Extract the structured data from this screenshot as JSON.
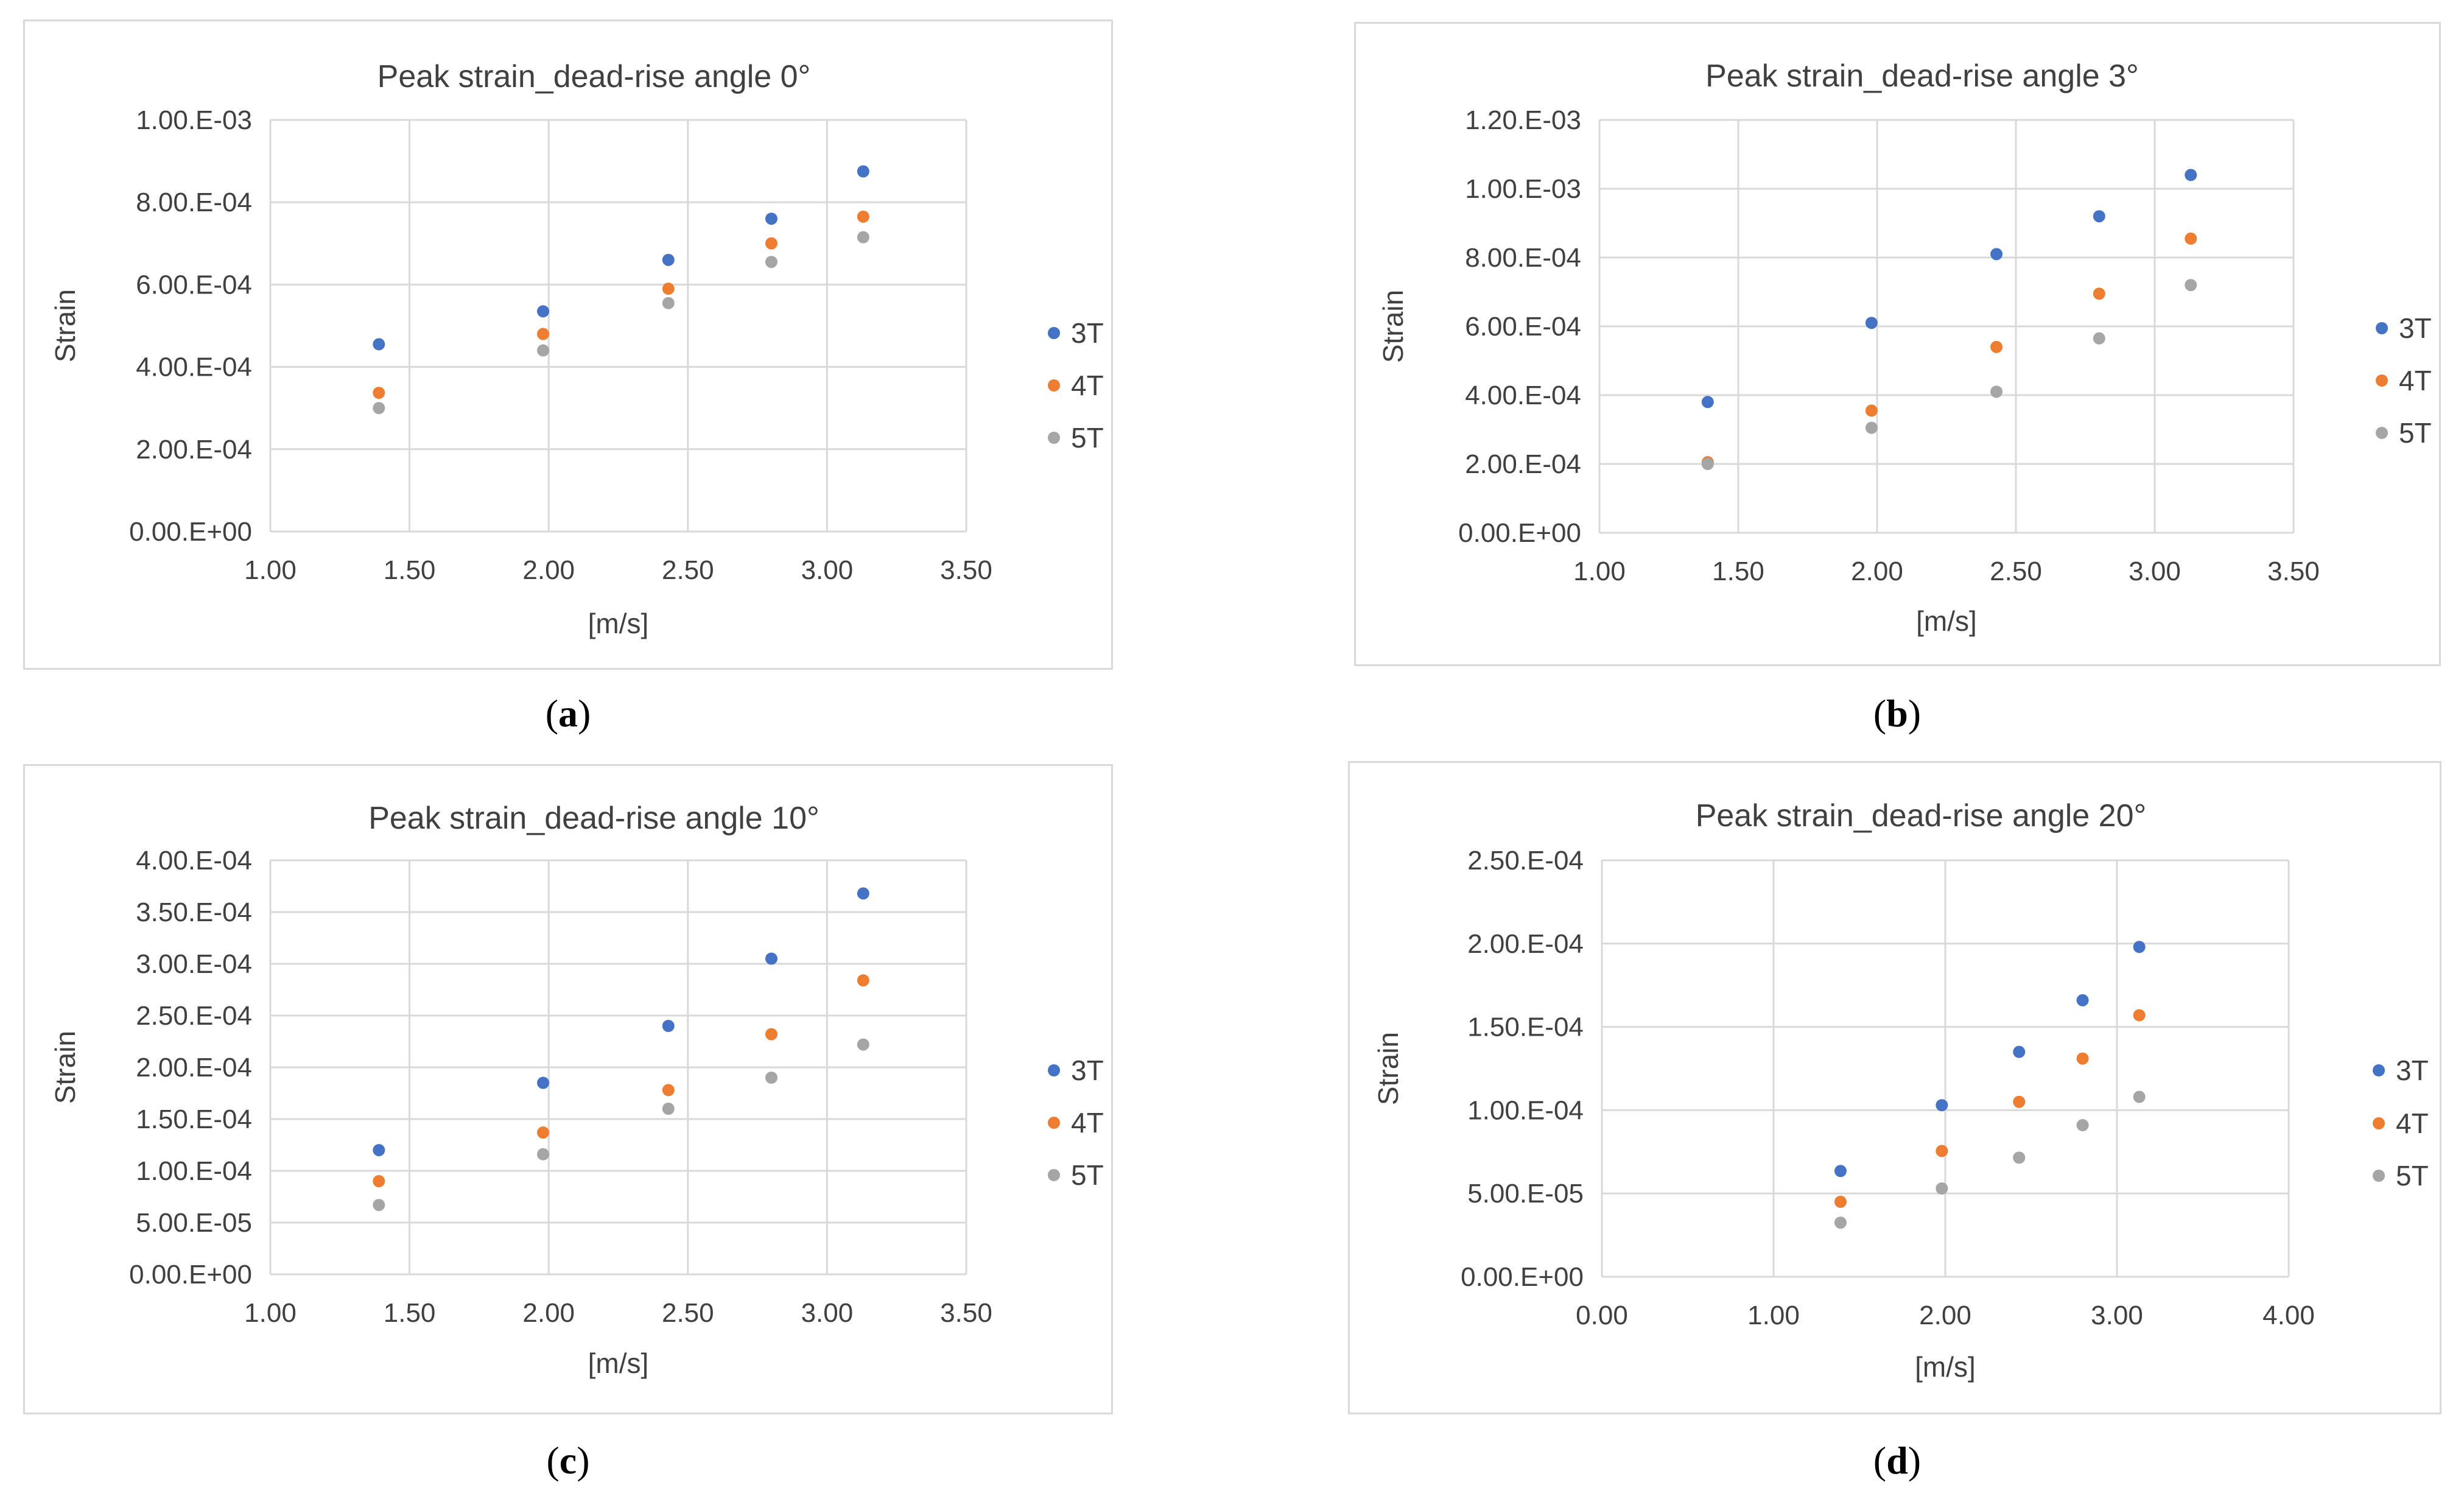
{
  "chart_data": [
    {
      "type": "scatter",
      "panel_label": "a",
      "title": "Peak strain_dead-rise angle 0°",
      "xlabel": "[m/s]",
      "ylabel": "Strain",
      "xlim": [
        1.0,
        3.5
      ],
      "ylim": [
        0.0,
        0.001
      ],
      "xticks": [
        "1.00",
        "1.50",
        "2.00",
        "2.50",
        "3.00",
        "3.50"
      ],
      "yticks": [
        "0.00.E+00",
        "2.00.E-04",
        "4.00.E-04",
        "6.00.E-04",
        "8.00.E-04",
        "1.00.E-03"
      ],
      "legend_position": "right",
      "x": [
        1.39,
        1.98,
        2.43,
        2.8,
        3.13
      ],
      "series": [
        {
          "name": "3T",
          "color": "#4472c4",
          "values": [
            0.000455,
            0.000535,
            0.00066,
            0.00076,
            0.000875
          ]
        },
        {
          "name": "4T",
          "color": "#ed7d31",
          "values": [
            0.000337,
            0.00048,
            0.00059,
            0.0007,
            0.000765
          ]
        },
        {
          "name": "5T",
          "color": "#a5a5a5",
          "values": [
            0.0003,
            0.00044,
            0.000555,
            0.000655,
            0.000715
          ]
        }
      ]
    },
    {
      "type": "scatter",
      "panel_label": "b",
      "title": "Peak strain_dead-rise angle 3°",
      "xlabel": "[m/s]",
      "ylabel": "Strain",
      "xlim": [
        1.0,
        3.5
      ],
      "ylim": [
        0.0,
        0.0012
      ],
      "xticks": [
        "1.00",
        "1.50",
        "2.00",
        "2.50",
        "3.00",
        "3.50"
      ],
      "yticks": [
        "0.00.E+00",
        "2.00.E-04",
        "4.00.E-04",
        "6.00.E-04",
        "8.00.E-04",
        "1.00.E-03",
        "1.20.E-03"
      ],
      "legend_position": "right",
      "x": [
        1.39,
        1.98,
        2.43,
        2.8,
        3.13
      ],
      "series": [
        {
          "name": "3T",
          "color": "#4472c4",
          "values": [
            0.00038,
            0.00061,
            0.00081,
            0.00092,
            0.00104
          ]
        },
        {
          "name": "4T",
          "color": "#ed7d31",
          "values": [
            0.000205,
            0.000355,
            0.00054,
            0.000695,
            0.000855
          ]
        },
        {
          "name": "5T",
          "color": "#a5a5a5",
          "values": [
            0.0002,
            0.000305,
            0.00041,
            0.000565,
            0.00072
          ]
        }
      ]
    },
    {
      "type": "scatter",
      "panel_label": "c",
      "title": "Peak strain_dead-rise angle 10°",
      "xlabel": "[m/s]",
      "ylabel": "Strain",
      "xlim": [
        1.0,
        3.5
      ],
      "ylim": [
        0.0,
        0.0004
      ],
      "xticks": [
        "1.00",
        "1.50",
        "2.00",
        "2.50",
        "3.00",
        "3.50"
      ],
      "yticks": [
        "0.00.E+00",
        "5.00.E-05",
        "1.00.E-04",
        "1.50.E-04",
        "2.00.E-04",
        "2.50.E-04",
        "3.00.E-04",
        "3.50.E-04",
        "4.00.E-04"
      ],
      "legend_position": "right",
      "x": [
        1.39,
        1.98,
        2.43,
        2.8,
        3.13
      ],
      "series": [
        {
          "name": "3T",
          "color": "#4472c4",
          "values": [
            0.00012,
            0.000185,
            0.00024,
            0.000305,
            0.000368
          ]
        },
        {
          "name": "4T",
          "color": "#ed7d31",
          "values": [
            9e-05,
            0.000137,
            0.000178,
            0.000232,
            0.000284
          ]
        },
        {
          "name": "5T",
          "color": "#a5a5a5",
          "values": [
            6.7e-05,
            0.000116,
            0.00016,
            0.00019,
            0.000222
          ]
        }
      ]
    },
    {
      "type": "scatter",
      "panel_label": "d",
      "title": "Peak strain_dead-rise angle 20°",
      "xlabel": "[m/s]",
      "ylabel": "Strain",
      "xlim": [
        0.0,
        4.0
      ],
      "ylim": [
        0.0,
        0.00025
      ],
      "xticks": [
        "0.00",
        "1.00",
        "2.00",
        "3.00",
        "4.00"
      ],
      "yticks": [
        "0.00.E+00",
        "5.00.E-05",
        "1.00.E-04",
        "1.50.E-04",
        "2.00.E-04",
        "2.50.E-04"
      ],
      "legend_position": "right",
      "x": [
        1.39,
        1.98,
        2.43,
        2.8,
        3.13
      ],
      "series": [
        {
          "name": "3T",
          "color": "#4472c4",
          "values": [
            6.35e-05,
            0.000103,
            0.000135,
            0.000166,
            0.000198
          ]
        },
        {
          "name": "4T",
          "color": "#ed7d31",
          "values": [
            4.5e-05,
            7.55e-05,
            0.000105,
            0.000131,
            0.000157
          ]
        },
        {
          "name": "5T",
          "color": "#a5a5a5",
          "values": [
            3.25e-05,
            5.3e-05,
            7.15e-05,
            9.1e-05,
            0.000108
          ]
        }
      ]
    }
  ],
  "captions": {
    "a": {
      "open": "(",
      "letter": "a",
      "close": ")"
    },
    "b": {
      "open": "(",
      "letter": "b",
      "close": ")"
    },
    "c": {
      "open": "(",
      "letter": "c",
      "close": ")"
    },
    "d": {
      "open": "(",
      "letter": "d",
      "close": ")"
    }
  }
}
